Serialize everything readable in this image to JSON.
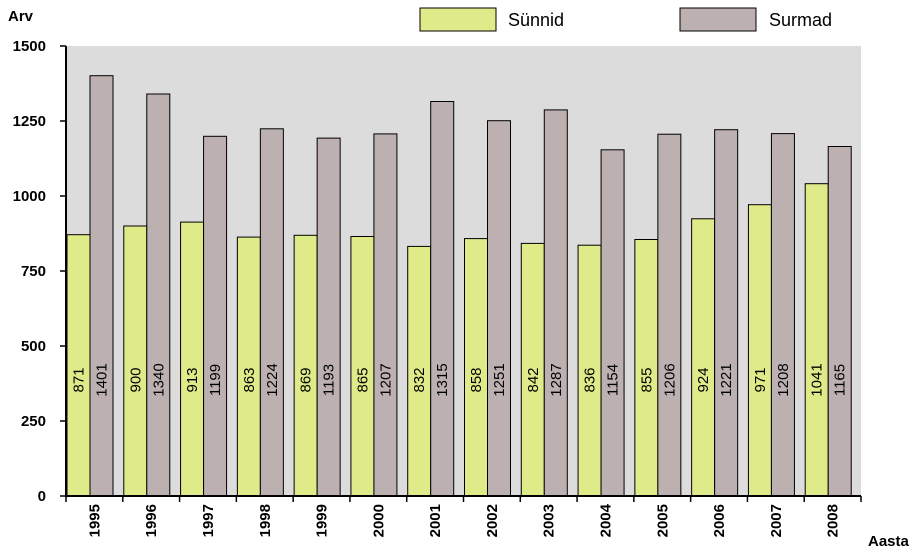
{
  "chart_data": {
    "type": "bar",
    "ylabel": "Arv",
    "xlabel": "Aasta",
    "ylim": [
      0,
      1500
    ],
    "yticks": [
      0,
      250,
      500,
      750,
      1000,
      1250,
      1500
    ],
    "categories": [
      "1995",
      "1996",
      "1997",
      "1998",
      "1999",
      "2000",
      "2001",
      "2002",
      "2003",
      "2004",
      "2005",
      "2006",
      "2007",
      "2008"
    ],
    "series": [
      {
        "name": "Sünnid",
        "color": "#dfea88",
        "values": [
          871,
          900,
          913,
          863,
          869,
          865,
          832,
          858,
          842,
          836,
          855,
          924,
          971,
          1041
        ]
      },
      {
        "name": "Surmad",
        "color": "#bcb0b1",
        "values": [
          1401,
          1340,
          1199,
          1224,
          1193,
          1207,
          1315,
          1251,
          1287,
          1154,
          1206,
          1221,
          1208,
          1165
        ]
      }
    ],
    "legend_position": "top",
    "grid": false,
    "plot_background": "#dcdcdc",
    "data_labels": "vertical, inside bars"
  }
}
